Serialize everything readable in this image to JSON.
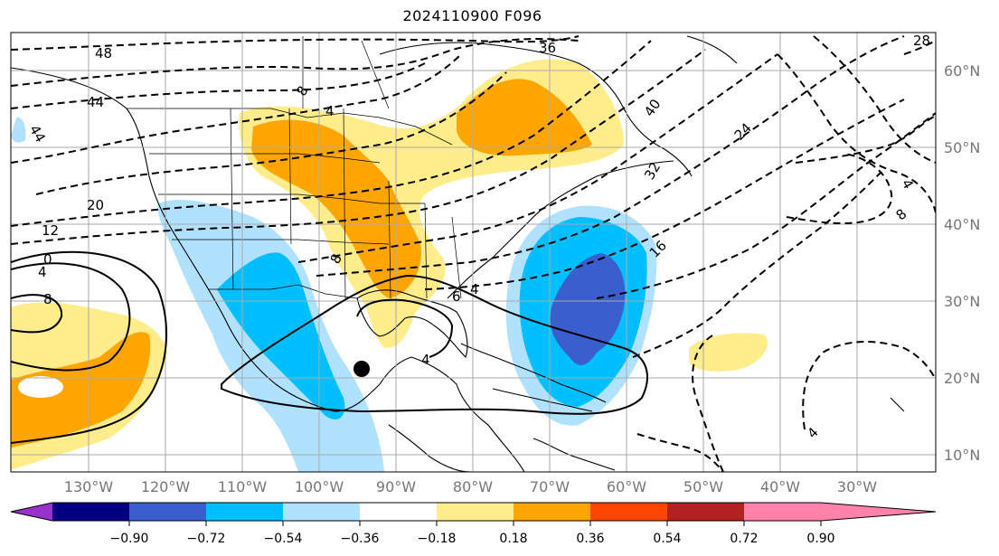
{
  "title": "2024110900 F096",
  "longitude_labels": [
    "130°W",
    "120°W",
    "110°W",
    "100°W",
    "90°W",
    "80°W",
    "70°W",
    "60°W",
    "50°W",
    "40°W",
    "30°W"
  ],
  "latitude_labels": [
    "60°N",
    "50°N",
    "40°N",
    "30°N",
    "20°N",
    "10°N"
  ],
  "contour_labels": {
    "dashed": [
      "48",
      "44",
      "44",
      "20",
      "12",
      "36",
      "40",
      "32",
      "24",
      "28",
      "8",
      "8",
      "16",
      "4",
      "4",
      "4",
      "8",
      "6",
      "4"
    ],
    "solid": [
      "0",
      "4",
      "8",
      "4"
    ]
  },
  "colorbar": {
    "ticks": [
      "−0.90",
      "−0.72",
      "−0.54",
      "−0.36",
      "−0.18",
      "0.18",
      "0.36",
      "0.54",
      "0.72",
      "0.90"
    ],
    "colors": [
      "#9932cc",
      "#000080",
      "#3a5fcd",
      "#00bfff",
      "#b0e2ff",
      "#ffffff",
      "#ffec8b",
      "#ffa500",
      "#ff4500",
      "#b22222",
      "#ff82ab"
    ]
  },
  "marker": {
    "name": "storm-center-dot",
    "color": "#000000"
  }
}
